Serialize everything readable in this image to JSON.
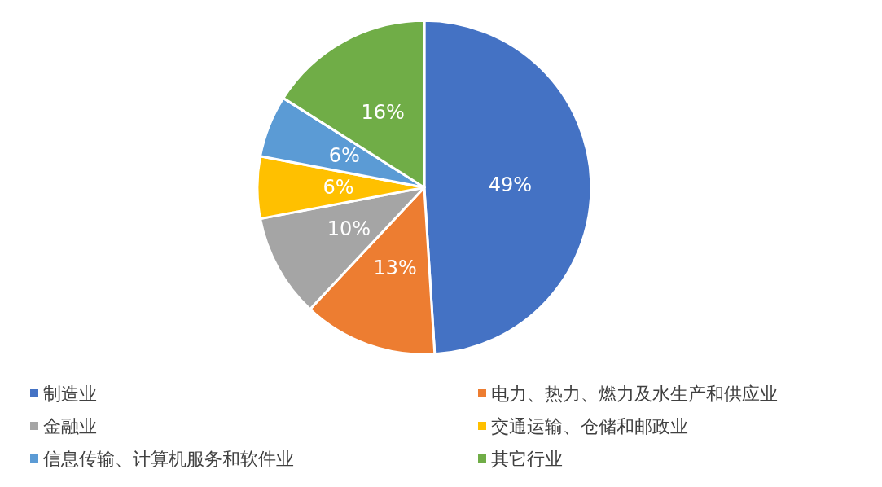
{
  "chart_data": {
    "type": "pie",
    "categories": [
      "制造业",
      "电力、热力、燃力及水生产和供应业",
      "金融业",
      "交通运输、仓储和邮政业",
      "信息传输、计算机服务和软件业",
      "其它行业"
    ],
    "values": [
      49,
      13,
      10,
      6,
      6,
      16
    ],
    "colors": [
      "#4472c4",
      "#ed7d31",
      "#a5a5a5",
      "#ffc000",
      "#5b9bd5",
      "#70ad47"
    ],
    "value_labels": [
      "49%",
      "13%",
      "10%",
      "6%",
      "6%",
      "16%"
    ],
    "legend": "bottom"
  }
}
